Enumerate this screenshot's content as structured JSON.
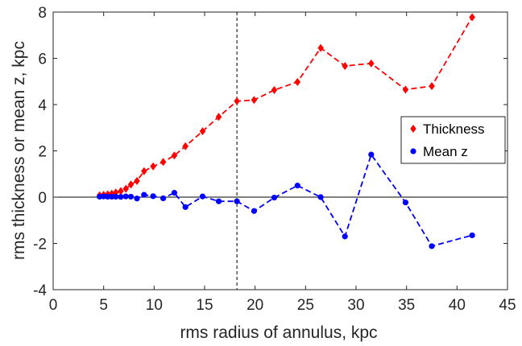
{
  "chart_data": {
    "type": "line",
    "xlabel": "rms radius of annulus, kpc",
    "ylabel": "rms thickness or mean z, kpc",
    "xlim": [
      0,
      45
    ],
    "ylim": [
      -4,
      8
    ],
    "x_ticks": [
      0,
      5,
      10,
      15,
      20,
      25,
      30,
      35,
      40,
      45
    ],
    "y_ticks": [
      -4,
      -2,
      0,
      2,
      4,
      6,
      8
    ],
    "grid": false,
    "legend_position": "right",
    "reference_lines": {
      "horizontal_y": 0,
      "vertical_dashed_x": 18.2
    },
    "series": [
      {
        "name": "Thickness",
        "color": "#ff0000",
        "marker": "diamond",
        "points": [
          [
            4.6,
            0.08
          ],
          [
            5.0,
            0.1
          ],
          [
            5.4,
            0.12
          ],
          [
            5.8,
            0.15
          ],
          [
            6.2,
            0.2
          ],
          [
            6.7,
            0.26
          ],
          [
            7.2,
            0.36
          ],
          [
            7.7,
            0.55
          ],
          [
            8.3,
            0.7
          ],
          [
            9.0,
            1.12
          ],
          [
            9.9,
            1.33
          ],
          [
            10.9,
            1.52
          ],
          [
            12.0,
            1.8
          ],
          [
            13.1,
            2.2
          ],
          [
            14.8,
            2.85
          ],
          [
            16.4,
            3.47
          ],
          [
            18.2,
            4.15
          ],
          [
            19.9,
            4.2
          ],
          [
            21.9,
            4.63
          ],
          [
            24.2,
            4.98
          ],
          [
            26.5,
            6.45
          ],
          [
            28.9,
            5.67
          ],
          [
            31.5,
            5.78
          ],
          [
            34.9,
            4.65
          ],
          [
            37.5,
            4.8
          ],
          [
            41.5,
            7.78
          ]
        ]
      },
      {
        "name": "Mean z",
        "color": "#0000ff",
        "marker": "circle",
        "points": [
          [
            4.6,
            0.02
          ],
          [
            5.0,
            0.03
          ],
          [
            5.4,
            0.02
          ],
          [
            5.8,
            0.02
          ],
          [
            6.2,
            0.02
          ],
          [
            6.7,
            0.01
          ],
          [
            7.2,
            0.03
          ],
          [
            7.7,
            0.02
          ],
          [
            8.3,
            -0.06
          ],
          [
            9.0,
            0.1
          ],
          [
            9.9,
            0.04
          ],
          [
            10.9,
            -0.05
          ],
          [
            12.0,
            0.19
          ],
          [
            13.1,
            -0.43
          ],
          [
            14.8,
            0.03
          ],
          [
            16.4,
            -0.18
          ],
          [
            18.2,
            -0.18
          ],
          [
            19.9,
            -0.6
          ],
          [
            21.9,
            -0.02
          ],
          [
            24.2,
            0.5
          ],
          [
            26.5,
            0.0
          ],
          [
            28.9,
            -1.7
          ],
          [
            31.5,
            1.84
          ],
          [
            34.9,
            -0.23
          ],
          [
            37.5,
            -2.12
          ],
          [
            41.5,
            -1.65
          ]
        ]
      }
    ]
  }
}
